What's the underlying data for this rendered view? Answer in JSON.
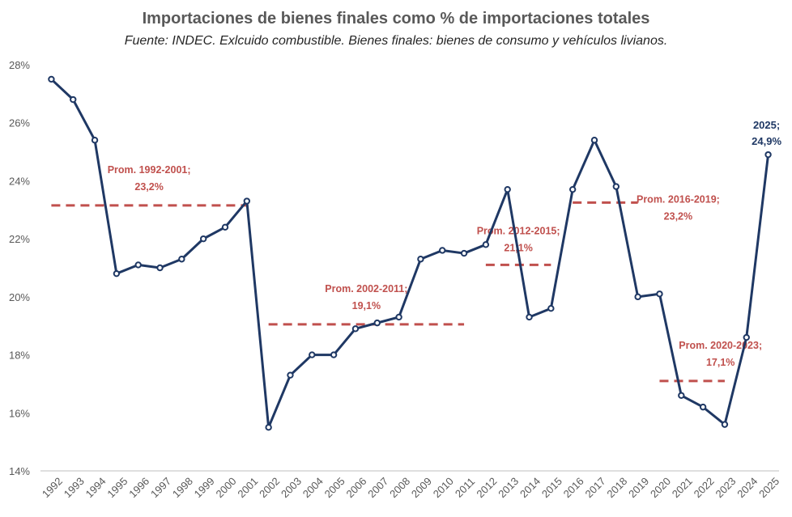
{
  "chart_data": {
    "type": "line",
    "title": "Importaciones de bienes finales como % de importaciones totales",
    "subtitle": "Fuente: INDEC. Exlcuido combustible. Bienes finales: bienes de consumo y vehículos livianos.",
    "xlabel": "",
    "ylabel": "",
    "ylim": [
      14,
      28
    ],
    "yticks": [
      "14%",
      "16%",
      "18%",
      "20%",
      "22%",
      "24%",
      "26%",
      "28%"
    ],
    "ytick_values": [
      14,
      16,
      18,
      20,
      22,
      24,
      26,
      28
    ],
    "grid": false,
    "categories": [
      "1992",
      "1993",
      "1994",
      "1995",
      "1996",
      "1997",
      "1998",
      "1999",
      "2000",
      "2001",
      "2002",
      "2003",
      "2004",
      "2005",
      "2006",
      "2007",
      "2008",
      "2009",
      "2010",
      "2011",
      "2012",
      "2013",
      "2014",
      "2015",
      "2016",
      "2017",
      "2018",
      "2019",
      "2020",
      "2021",
      "2022",
      "2023",
      "2024",
      "2025"
    ],
    "series": [
      {
        "name": "Bienes finales % importaciones",
        "color": "#1f3864",
        "values": [
          27.5,
          26.8,
          25.4,
          20.8,
          21.1,
          21.0,
          21.3,
          22.0,
          22.4,
          23.3,
          15.5,
          17.3,
          18.0,
          18.0,
          18.9,
          19.1,
          19.3,
          21.3,
          21.6,
          21.5,
          21.8,
          23.7,
          19.3,
          19.6,
          23.7,
          25.4,
          23.8,
          20.0,
          20.1,
          16.6,
          16.2,
          15.6,
          18.6,
          24.9
        ]
      }
    ],
    "averages": [
      {
        "label": "Prom. 1992-2001;",
        "value_label": "23,2%",
        "value": 23.15,
        "from": "1992",
        "to": "2001",
        "color": "#c0504d"
      },
      {
        "label": "Prom. 2002-2011;",
        "value_label": "19,1%",
        "value": 19.05,
        "from": "2002",
        "to": "2011",
        "color": "#c0504d"
      },
      {
        "label": "Prom. 2012-2015;",
        "value_label": "21,1%",
        "value": 21.1,
        "from": "2012",
        "to": "2015",
        "color": "#c0504d"
      },
      {
        "label": "Prom. 2016-2019;",
        "value_label": "23,2%",
        "value": 23.25,
        "from": "2016",
        "to": "2019",
        "color": "#c0504d"
      },
      {
        "label": "Prom. 2020-2023;",
        "value_label": "17,1%",
        "value": 17.1,
        "from": "2020",
        "to": "2023",
        "color": "#c0504d"
      }
    ],
    "annotations": [
      {
        "text": "2025;",
        "value_text": "24,9%",
        "at": "2025"
      }
    ]
  }
}
